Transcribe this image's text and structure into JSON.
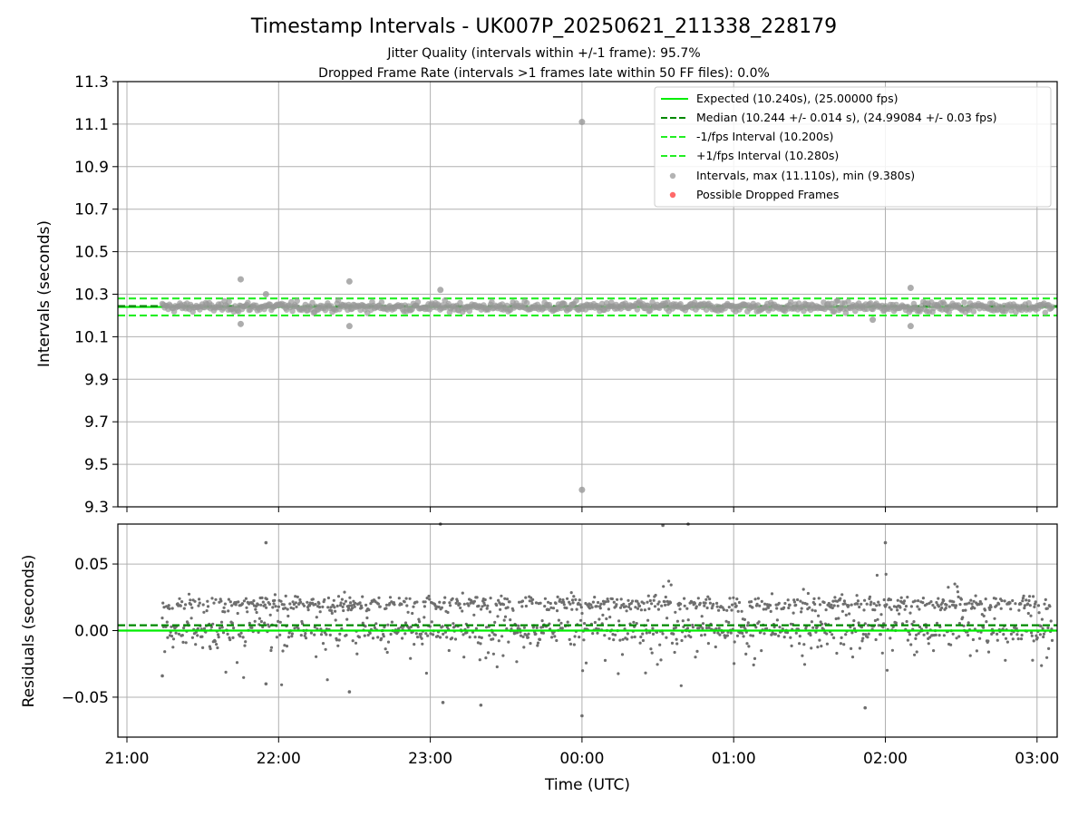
{
  "figure": {
    "title": "Timestamp Intervals - UK007P_20250621_211338_228179",
    "subtitle_1": "Jitter Quality (intervals within +/-1 frame): 95.7%",
    "subtitle_2": "Dropped Frame Rate (intervals >1 frames late within 50 FF files): 0.0%",
    "xlabel": "Time (UTC)"
  },
  "colors": {
    "expected": "#00ee00",
    "median": "#008800",
    "interval_bounds": "#22ee22",
    "points": "#999999",
    "residual_points": "#6e6e6e",
    "dropped": "#ff4444",
    "grid": "#b0b0b0"
  },
  "chart_data": [
    {
      "type": "scatter",
      "panel": "intervals",
      "ylabel": "Intervals (seconds)",
      "ylim": [
        9.3,
        11.3
      ],
      "yticks": [
        "11.3",
        "11.1",
        "10.9",
        "10.7",
        "10.5",
        "10.3",
        "10.1",
        "9.9",
        "9.7",
        "9.5",
        "9.3"
      ],
      "xticks": [
        "21:00",
        "22:00",
        "23:00",
        "00:00",
        "01:00",
        "02:00",
        "03:00"
      ],
      "x_range": [
        "21:00",
        "03:00"
      ],
      "grid": true,
      "legend_position": "top-right",
      "legend": [
        "Expected (10.240s), (25.00000 fps)",
        "Median (10.244 +/- 0.014 s), (24.99084 +/- 0.03 fps)",
        "-1/fps Interval (10.200s)",
        "+1/fps Interval (10.280s)",
        "Intervals, max (11.110s), min (9.380s)",
        "Possible Dropped Frames"
      ],
      "series": [
        {
          "name": "Expected (10.240s), (25.00000 fps)",
          "style": "hline",
          "y": 10.24
        },
        {
          "name": "Median (10.244 +/- 0.014 s), (24.99084 +/- 0.03 fps)",
          "style": "hline-dashed",
          "y": 10.244
        },
        {
          "name": "-1/fps Interval (10.200s)",
          "style": "hline-dashed",
          "y": 10.2
        },
        {
          "name": "+1/fps Interval (10.280s)",
          "style": "hline-dashed",
          "y": 10.28
        },
        {
          "name": "Intervals, max (11.110s), min (9.380s)",
          "style": "points",
          "time_range": [
            "21:14",
            "03:06"
          ],
          "typical_range": [
            10.2,
            10.28
          ],
          "count_estimate": 2060,
          "outliers": [
            {
              "x": "21:45",
              "y": 10.37
            },
            {
              "x": "21:45",
              "y": 10.16
            },
            {
              "x": "21:55",
              "y": 10.3
            },
            {
              "x": "22:28",
              "y": 10.36
            },
            {
              "x": "22:28",
              "y": 10.15
            },
            {
              "x": "23:04",
              "y": 10.32
            },
            {
              "x": "00:00",
              "y": 11.11
            },
            {
              "x": "00:00",
              "y": 9.38
            },
            {
              "x": "01:55",
              "y": 10.18
            },
            {
              "x": "02:10",
              "y": 10.33
            },
            {
              "x": "02:10",
              "y": 10.15
            }
          ]
        },
        {
          "name": "Possible Dropped Frames",
          "style": "points",
          "points": []
        }
      ]
    },
    {
      "type": "scatter",
      "panel": "residuals",
      "ylabel": "Residuals (seconds)",
      "ylim": [
        -0.08,
        0.08
      ],
      "yticks": [
        "0.05",
        "0.00",
        "−0.05"
      ],
      "xticks": [
        "21:00",
        "22:00",
        "23:00",
        "00:00",
        "01:00",
        "02:00",
        "03:00"
      ],
      "grid": true,
      "series": [
        {
          "style": "hline",
          "y": 0.0
        },
        {
          "style": "hline-dashed",
          "y": 0.004
        },
        {
          "style": "points",
          "time_range": [
            "21:14",
            "03:06"
          ],
          "typical_range": [
            -0.02,
            0.03
          ],
          "count_estimate": 2060,
          "outliers": [
            {
              "x": "21:14",
              "y": -0.034
            },
            {
              "x": "21:55",
              "y": 0.066
            },
            {
              "x": "21:55",
              "y": -0.04
            },
            {
              "x": "22:28",
              "y": -0.046
            },
            {
              "x": "23:04",
              "y": 0.08
            },
            {
              "x": "23:05",
              "y": -0.054
            },
            {
              "x": "23:20",
              "y": -0.056
            },
            {
              "x": "00:00",
              "y": -0.064
            },
            {
              "x": "00:32",
              "y": 0.079
            },
            {
              "x": "00:42",
              "y": 0.08
            },
            {
              "x": "01:52",
              "y": -0.058
            },
            {
              "x": "02:00",
              "y": 0.066
            }
          ]
        }
      ]
    }
  ]
}
